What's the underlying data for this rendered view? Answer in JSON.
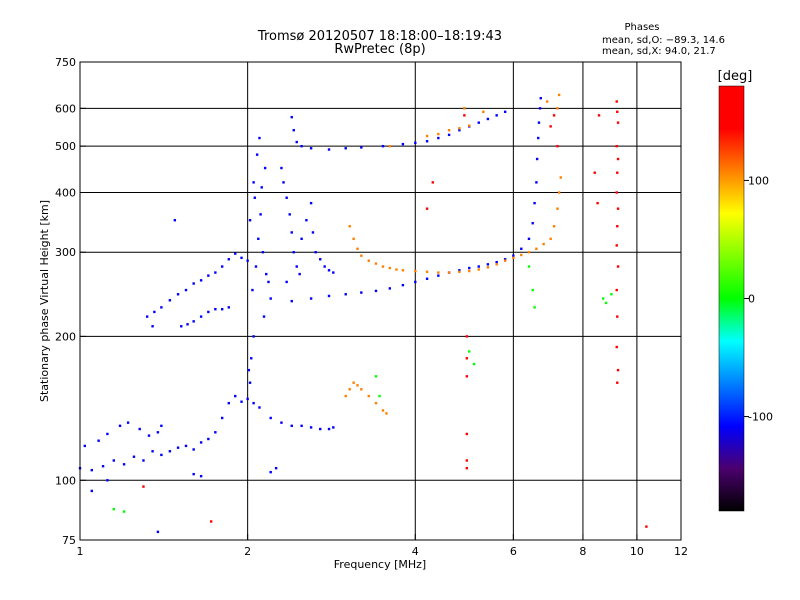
{
  "chart_data": {
    "type": "scatter",
    "title": "Tromsø 20120507 18:18:00–18:19:43",
    "subtitle": "RwPretec (8p)",
    "xlabel": "Frequency [MHz]",
    "ylabel": "Stationary phase Virtual Height [km]",
    "x_scale": "log",
    "y_scale": "log",
    "xlim": [
      1,
      12
    ],
    "ylim": [
      75,
      750
    ],
    "x_ticks": [
      1,
      2,
      4,
      6,
      8,
      10,
      12
    ],
    "y_ticks": [
      75,
      100,
      200,
      300,
      400,
      500,
      600,
      750
    ],
    "x_grid": [
      2,
      4,
      6,
      8,
      10
    ],
    "y_grid": [
      100,
      200,
      300,
      400,
      500,
      600
    ],
    "grid": true,
    "stats": {
      "heading": "Phases",
      "o_line": "mean, sd,O: −89.3, 14.6",
      "x_line": "mean, sd,X:  94.0, 21.7"
    },
    "colorbar": {
      "label": "[deg]",
      "ticks": [
        100,
        0,
        -100
      ],
      "range": [
        -180,
        180
      ],
      "colors": [
        "#000000",
        "#4b006e",
        "#0000ff",
        "#0080ff",
        "#00ffff",
        "#00ff00",
        "#80ff00",
        "#ffff00",
        "#ff8000",
        "#ff0000",
        "#ff0000"
      ]
    },
    "series": [
      {
        "name": "",
        "color_phase": -100,
        "points": [
          [
            1.0,
            106
          ],
          [
            1.05,
            105
          ],
          [
            1.1,
            107
          ],
          [
            1.15,
            110
          ],
          [
            1.2,
            108
          ],
          [
            1.25,
            112
          ],
          [
            1.3,
            110
          ],
          [
            1.35,
            115
          ],
          [
            1.4,
            113
          ],
          [
            1.45,
            115
          ],
          [
            1.5,
            117
          ],
          [
            1.55,
            118
          ],
          [
            1.6,
            116
          ],
          [
            1.65,
            120
          ],
          [
            1.7,
            122
          ],
          [
            1.75,
            126
          ],
          [
            1.8,
            135
          ],
          [
            1.85,
            145
          ],
          [
            1.9,
            150
          ],
          [
            1.95,
            146
          ],
          [
            2.0,
            148
          ],
          [
            2.05,
            145
          ],
          [
            2.1,
            142
          ],
          [
            2.2,
            135
          ],
          [
            2.3,
            132
          ],
          [
            2.4,
            130
          ],
          [
            2.5,
            130
          ],
          [
            2.6,
            129
          ],
          [
            2.7,
            128
          ],
          [
            2.8,
            128
          ],
          [
            2.85,
            129
          ],
          [
            1.02,
            118
          ],
          [
            1.08,
            121
          ],
          [
            1.12,
            125
          ],
          [
            1.18,
            130
          ],
          [
            1.22,
            132
          ],
          [
            1.28,
            128
          ],
          [
            1.33,
            124
          ],
          [
            1.38,
            126
          ],
          [
            1.32,
            220
          ],
          [
            1.36,
            225
          ],
          [
            1.4,
            230
          ],
          [
            1.45,
            238
          ],
          [
            1.5,
            245
          ],
          [
            1.55,
            250
          ],
          [
            1.6,
            258
          ],
          [
            1.65,
            262
          ],
          [
            1.7,
            268
          ],
          [
            1.75,
            272
          ],
          [
            1.8,
            280
          ],
          [
            1.85,
            290
          ],
          [
            1.9,
            298
          ],
          [
            1.95,
            292
          ],
          [
            2.0,
            288
          ],
          [
            1.52,
            210
          ],
          [
            1.56,
            212
          ],
          [
            1.6,
            215
          ],
          [
            1.65,
            220
          ],
          [
            1.7,
            225
          ],
          [
            1.75,
            228
          ],
          [
            1.8,
            228
          ],
          [
            1.85,
            230
          ],
          [
            2.02,
            350
          ],
          [
            2.05,
            420
          ],
          [
            2.08,
            480
          ],
          [
            2.1,
            520
          ],
          [
            2.06,
            390
          ],
          [
            2.12,
            410
          ],
          [
            2.15,
            450
          ],
          [
            2.04,
            250
          ],
          [
            2.07,
            280
          ],
          [
            2.09,
            320
          ],
          [
            2.11,
            360
          ],
          [
            2.13,
            300
          ],
          [
            2.16,
            270
          ],
          [
            2.18,
            260
          ],
          [
            2.2,
            240
          ],
          [
            2.14,
            220
          ],
          [
            2.05,
            200
          ],
          [
            2.03,
            180
          ],
          [
            2.01,
            170
          ],
          [
            2.02,
            160
          ],
          [
            2.4,
            575
          ],
          [
            2.42,
            540
          ],
          [
            2.45,
            510
          ],
          [
            2.5,
            500
          ],
          [
            2.6,
            495
          ],
          [
            2.8,
            492
          ],
          [
            3.0,
            495
          ],
          [
            3.2,
            497
          ],
          [
            3.5,
            500
          ],
          [
            3.8,
            505
          ],
          [
            4.0,
            508
          ],
          [
            4.2,
            512
          ],
          [
            4.4,
            520
          ],
          [
            4.6,
            528
          ],
          [
            4.8,
            540
          ],
          [
            5.0,
            550
          ],
          [
            5.2,
            560
          ],
          [
            5.4,
            570
          ],
          [
            5.6,
            580
          ],
          [
            5.8,
            590
          ],
          [
            2.3,
            450
          ],
          [
            2.32,
            420
          ],
          [
            2.35,
            390
          ],
          [
            2.38,
            360
          ],
          [
            2.4,
            330
          ],
          [
            2.42,
            300
          ],
          [
            2.45,
            280
          ],
          [
            2.48,
            270
          ],
          [
            2.35,
            260
          ],
          [
            2.5,
            320
          ],
          [
            2.55,
            350
          ],
          [
            2.6,
            380
          ],
          [
            2.62,
            330
          ],
          [
            2.65,
            300
          ],
          [
            2.7,
            290
          ],
          [
            2.75,
            280
          ],
          [
            2.8,
            275
          ],
          [
            2.85,
            272
          ],
          [
            2.4,
            237
          ],
          [
            2.6,
            240
          ],
          [
            2.8,
            243
          ],
          [
            3.0,
            245
          ],
          [
            3.2,
            247
          ],
          [
            3.4,
            249
          ],
          [
            3.6,
            252
          ],
          [
            3.8,
            256
          ],
          [
            4.0,
            260
          ],
          [
            4.2,
            264
          ],
          [
            4.4,
            268
          ],
          [
            4.6,
            272
          ],
          [
            4.8,
            275
          ],
          [
            5.0,
            278
          ],
          [
            5.2,
            280
          ],
          [
            5.4,
            283
          ],
          [
            5.6,
            286
          ],
          [
            5.8,
            290
          ],
          [
            6.0,
            295
          ],
          [
            6.2,
            305
          ],
          [
            6.4,
            320
          ],
          [
            6.5,
            345
          ],
          [
            6.55,
            380
          ],
          [
            6.6,
            420
          ],
          [
            6.62,
            470
          ],
          [
            6.65,
            520
          ],
          [
            6.67,
            560
          ],
          [
            6.7,
            600
          ],
          [
            6.72,
            630
          ],
          [
            1.05,
            95
          ],
          [
            1.12,
            100
          ],
          [
            1.4,
            130
          ],
          [
            1.6,
            103
          ],
          [
            1.65,
            102
          ],
          [
            2.2,
            104
          ],
          [
            2.25,
            106
          ],
          [
            1.38,
            78
          ],
          [
            1.35,
            210
          ],
          [
            1.48,
            350
          ]
        ]
      },
      {
        "name": "",
        "color_phase": 100,
        "points": [
          [
            3.05,
            340
          ],
          [
            3.1,
            320
          ],
          [
            3.15,
            305
          ],
          [
            3.2,
            295
          ],
          [
            3.3,
            288
          ],
          [
            3.4,
            284
          ],
          [
            3.5,
            280
          ],
          [
            3.6,
            278
          ],
          [
            3.7,
            276
          ],
          [
            3.8,
            275
          ],
          [
            4.0,
            274
          ],
          [
            4.2,
            273
          ],
          [
            4.4,
            272
          ],
          [
            4.6,
            272
          ],
          [
            4.8,
            273
          ],
          [
            5.0,
            274
          ],
          [
            5.2,
            276
          ],
          [
            5.4,
            279
          ],
          [
            5.6,
            283
          ],
          [
            5.8,
            288
          ],
          [
            6.0,
            292
          ],
          [
            6.2,
            296
          ],
          [
            6.4,
            300
          ],
          [
            6.6,
            305
          ],
          [
            6.8,
            312
          ],
          [
            7.0,
            320
          ],
          [
            7.1,
            340
          ],
          [
            7.2,
            370
          ],
          [
            7.25,
            400
          ],
          [
            7.3,
            430
          ],
          [
            3.0,
            150
          ],
          [
            3.05,
            155
          ],
          [
            3.1,
            160
          ],
          [
            3.15,
            158
          ],
          [
            3.2,
            155
          ],
          [
            3.3,
            150
          ],
          [
            3.4,
            145
          ],
          [
            3.5,
            140
          ],
          [
            3.55,
            138
          ],
          [
            4.2,
            525
          ],
          [
            4.4,
            530
          ],
          [
            4.6,
            540
          ],
          [
            4.8,
            545
          ],
          [
            5.0,
            552
          ],
          [
            4.9,
            600
          ],
          [
            5.3,
            590
          ],
          [
            7.2,
            600
          ],
          [
            7.25,
            640
          ],
          [
            6.9,
            620
          ],
          [
            3.6,
            500
          ]
        ]
      },
      {
        "name": "",
        "color_phase": 170,
        "points": [
          [
            4.2,
            370
          ],
          [
            4.3,
            420
          ],
          [
            4.9,
            580
          ],
          [
            4.95,
            200
          ],
          [
            4.95,
            180
          ],
          [
            4.95,
            165
          ],
          [
            4.95,
            125
          ],
          [
            4.95,
            110
          ],
          [
            4.95,
            106
          ],
          [
            7.0,
            550
          ],
          [
            7.1,
            580
          ],
          [
            7.2,
            500
          ],
          [
            8.4,
            440
          ],
          [
            8.5,
            380
          ],
          [
            8.55,
            580
          ],
          [
            9.2,
            620
          ],
          [
            9.22,
            590
          ],
          [
            9.25,
            560
          ],
          [
            9.2,
            500
          ],
          [
            9.25,
            470
          ],
          [
            9.22,
            440
          ],
          [
            9.2,
            400
          ],
          [
            9.25,
            370
          ],
          [
            9.22,
            340
          ],
          [
            9.2,
            310
          ],
          [
            9.25,
            280
          ],
          [
            9.2,
            250
          ],
          [
            9.22,
            220
          ],
          [
            9.2,
            190
          ],
          [
            9.25,
            170
          ],
          [
            9.22,
            160
          ],
          [
            10.4,
            80
          ],
          [
            1.72,
            82
          ],
          [
            1.3,
            97
          ]
        ]
      },
      {
        "name": "",
        "color_phase": 0,
        "points": [
          [
            5.0,
            186
          ],
          [
            5.1,
            175
          ],
          [
            6.4,
            280
          ],
          [
            6.5,
            250
          ],
          [
            6.55,
            230
          ],
          [
            8.7,
            240
          ],
          [
            8.8,
            235
          ],
          [
            9.0,
            245
          ],
          [
            1.15,
            87
          ],
          [
            1.2,
            86
          ],
          [
            3.4,
            165
          ],
          [
            3.45,
            150
          ]
        ]
      }
    ]
  }
}
